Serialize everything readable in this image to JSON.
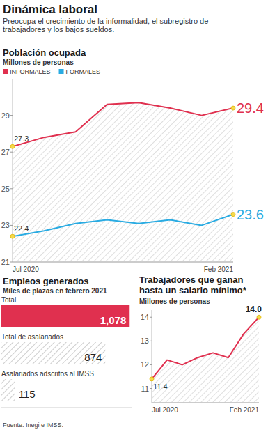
{
  "title": "Dinámica laboral",
  "subtitle": "Preocupa el crecimiento de la informalidad, el subregistro de trabajadores y los bajos sueldos.",
  "source": "Fuente: Inegi e IMSS.",
  "chart_data": [
    {
      "type": "line",
      "title": "Población ocupada",
      "subtitle": "Millones de personas",
      "categories": [
        "Jul 2020",
        null,
        null,
        null,
        null,
        null,
        null,
        "Feb 2021"
      ],
      "series": [
        {
          "name": "INFORMALES",
          "color": "#e0304f",
          "values": [
            27.3,
            27.8,
            28.1,
            29.6,
            29.7,
            29.4,
            29.0,
            29.4
          ],
          "value_labels": [
            "27.3",
            null,
            null,
            null,
            null,
            null,
            null,
            "29.4"
          ]
        },
        {
          "name": "FORMALES",
          "color": "#29abe2",
          "values": [
            22.4,
            22.7,
            23.1,
            23.3,
            23.1,
            23.3,
            23.0,
            23.6
          ],
          "value_labels": [
            "22.4",
            null,
            null,
            null,
            null,
            null,
            null,
            "23.6"
          ]
        }
      ],
      "ylim": [
        21,
        31
      ],
      "yticks": [
        21,
        23,
        25,
        27,
        29
      ],
      "legend": "top-left"
    },
    {
      "type": "bar",
      "orientation": "horizontal",
      "title": "Empleos generados",
      "subtitle": "Miles de plazas en febrero 2021",
      "categories": [
        "Total",
        "Total de asalariados",
        "Asalariados adscritos al IMSS"
      ],
      "values": [
        1078,
        874,
        115
      ],
      "value_labels": [
        "1,078",
        "874",
        "115"
      ],
      "data_labels": true,
      "colors": [
        "#e0304f",
        "#aaaaaa",
        "#aaaaaa"
      ],
      "xlim": [
        0,
        1100
      ],
      "tick_labels": false
    },
    {
      "type": "line",
      "title": "Trabajadores que ganan hasta un salario mínimo*",
      "subtitle": "Millones de personas",
      "categories": [
        "Jul 2020",
        null,
        null,
        null,
        null,
        null,
        null,
        "Feb 2021"
      ],
      "values": [
        11.4,
        12.2,
        12.0,
        12.3,
        12.5,
        12.3,
        13.3,
        14.0
      ],
      "value_labels": [
        "11.4",
        null,
        null,
        null,
        null,
        null,
        null,
        "14.0"
      ],
      "color": "#e0304f",
      "ylim": [
        10.4,
        14.3
      ],
      "yticks": [
        11,
        12,
        13,
        14
      ]
    }
  ]
}
